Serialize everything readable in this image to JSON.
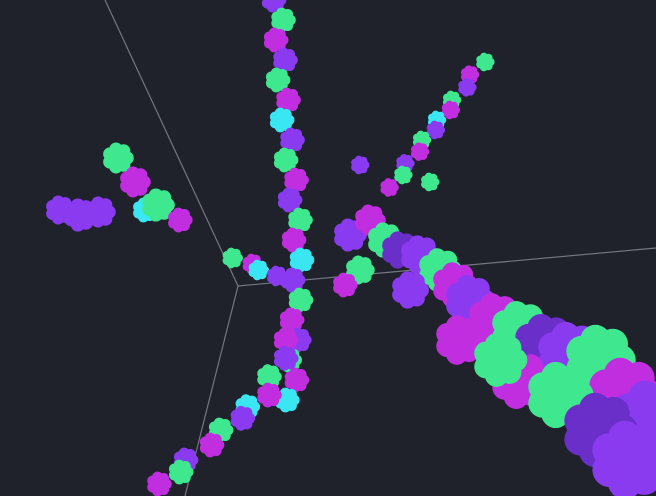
{
  "scene": {
    "background": "#1f212b",
    "axis_color": "#8a8d96",
    "palette": {
      "purple": "#8a3bf0",
      "magenta": "#c02ee0",
      "green": "#3fe88f",
      "cyan": "#39e6f2",
      "deep_purple": "#6b2fc9"
    },
    "objects": [
      "axis-lines",
      "detached-filament-cluster",
      "central-vertical-filament",
      "lower-left-branch",
      "upper-right-thin-branch",
      "large-bundle-right"
    ]
  }
}
